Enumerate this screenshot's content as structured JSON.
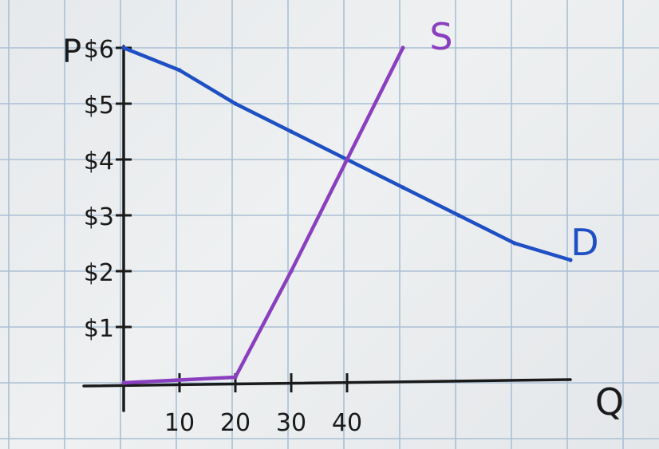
{
  "chart_data": {
    "type": "line",
    "title": "",
    "xlabel": "Q",
    "ylabel": "P",
    "x_ticks": [
      "10",
      "20",
      "30",
      "40"
    ],
    "x_tick_values": [
      10,
      20,
      30,
      40
    ],
    "y_ticks": [
      "$1",
      "$2",
      "$3",
      "$4",
      "$5",
      "$6"
    ],
    "y_tick_values": [
      1,
      2,
      3,
      4,
      5,
      6
    ],
    "xlim": [
      0,
      80
    ],
    "ylim": [
      0,
      6
    ],
    "grid": true,
    "series": [
      {
        "name": "D",
        "color": "#1f4fc4",
        "points": [
          [
            0,
            6
          ],
          [
            10,
            5.6
          ],
          [
            20,
            5
          ],
          [
            30,
            4.5
          ],
          [
            40,
            4
          ],
          [
            50,
            3.5
          ],
          [
            60,
            3
          ],
          [
            70,
            2.5
          ],
          [
            80,
            2.2
          ]
        ]
      },
      {
        "name": "S",
        "color": "#8a3fbf",
        "points": [
          [
            0,
            0
          ],
          [
            10,
            0.05
          ],
          [
            20,
            0.1
          ],
          [
            30,
            2
          ],
          [
            40,
            4
          ],
          [
            50,
            6
          ]
        ]
      }
    ]
  },
  "colors": {
    "grid": "#a9c0d6",
    "axis": "#1a1a1a",
    "paper": "#e9ecef"
  }
}
